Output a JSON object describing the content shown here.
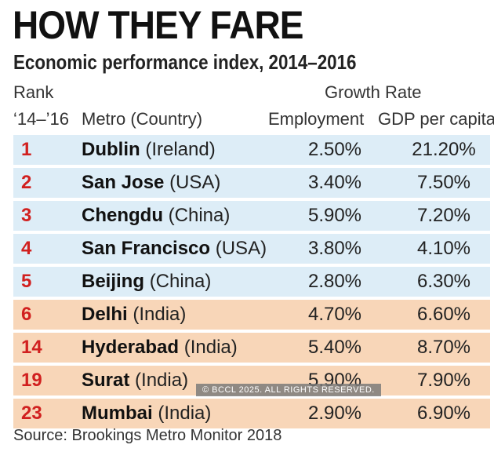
{
  "chart_data": {
    "type": "table",
    "title": "HOW THEY FARE",
    "subtitle": "Economic performance index, 2014–2016",
    "headers": {
      "rank_line1": "Rank",
      "rank_line2": "‘14–’16",
      "metro": "Metro (Country)",
      "growth": "Growth Rate",
      "employment": "Employment",
      "gdp": "GDP per capita"
    },
    "rows": [
      {
        "rank": "1",
        "city": "Dublin",
        "country": "(Ireland)",
        "employment": "2.50%",
        "gdp": "21.20%",
        "group": "blue"
      },
      {
        "rank": "2",
        "city": "San Jose",
        "country": "(USA)",
        "employment": "3.40%",
        "gdp": "7.50%",
        "group": "blue"
      },
      {
        "rank": "3",
        "city": "Chengdu",
        "country": "(China)",
        "employment": "5.90%",
        "gdp": "7.20%",
        "group": "blue"
      },
      {
        "rank": "4",
        "city": "San Francisco",
        "country": "(USA)",
        "employment": "3.80%",
        "gdp": "4.10%",
        "group": "blue"
      },
      {
        "rank": "5",
        "city": "Beijing",
        "country": "(China)",
        "employment": "2.80%",
        "gdp": "6.30%",
        "group": "blue"
      },
      {
        "rank": "6",
        "city": "Delhi",
        "country": "(India)",
        "employment": "4.70%",
        "gdp": "6.60%",
        "group": "orange"
      },
      {
        "rank": "14",
        "city": "Hyderabad",
        "country": "(India)",
        "employment": "5.40%",
        "gdp": "8.70%",
        "group": "orange"
      },
      {
        "rank": "19",
        "city": "Surat",
        "country": "(India)",
        "employment": "5.90%",
        "gdp": "7.90%",
        "group": "orange"
      },
      {
        "rank": "23",
        "city": "Mumbai",
        "country": "(India)",
        "employment": "2.90%",
        "gdp": "6.90%",
        "group": "orange"
      }
    ],
    "watermark": "© BCCL 2025. ALL RIGHTS RESERVED.",
    "source": "Source: Brookings Metro Monitor 2018"
  },
  "colors": {
    "rank": "#d1201f",
    "blue_row": "#ddedf7",
    "orange_row": "#f8d6b8"
  }
}
